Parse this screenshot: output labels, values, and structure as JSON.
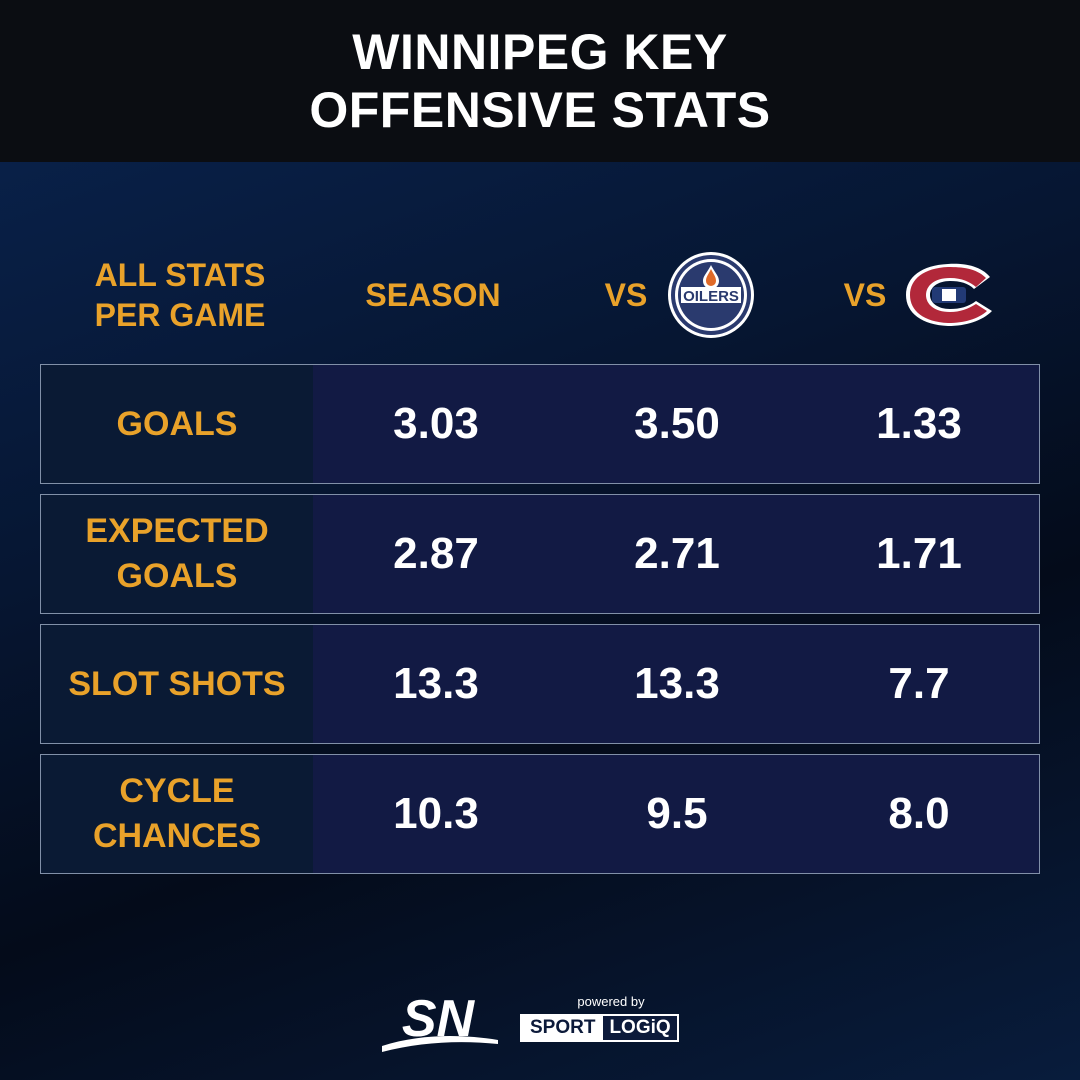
{
  "title": {
    "line1": "WINNIPEG KEY",
    "line2": "OFFENSIVE STATS"
  },
  "columns": {
    "label_line1": "ALL STATS",
    "label_line2": "PER GAME",
    "season": "SEASON",
    "vs1": "VS",
    "vs2": "VS"
  },
  "logos": {
    "oilers": "OILERS",
    "canadiens": "CH"
  },
  "rows": [
    {
      "label1": "GOALS",
      "label2": "",
      "season": "3.03",
      "vs_oilers": "3.50",
      "vs_canadiens": "1.33"
    },
    {
      "label1": "EXPECTED",
      "label2": "GOALS",
      "season": "2.87",
      "vs_oilers": "2.71",
      "vs_canadiens": "1.71"
    },
    {
      "label1": "SLOT SHOTS",
      "label2": "",
      "season": "13.3",
      "vs_oilers": "13.3",
      "vs_canadiens": "7.7"
    },
    {
      "label1": "CYCLE",
      "label2": "CHANCES",
      "season": "10.3",
      "vs_oilers": "9.5",
      "vs_canadiens": "8.0"
    }
  ],
  "footer": {
    "sn": "SN",
    "powered_by": "powered by",
    "sport": "SPORT",
    "logiq": "LOGiQ"
  },
  "colors": {
    "gold": "#e9a22a",
    "row_bg": "#121a44"
  }
}
